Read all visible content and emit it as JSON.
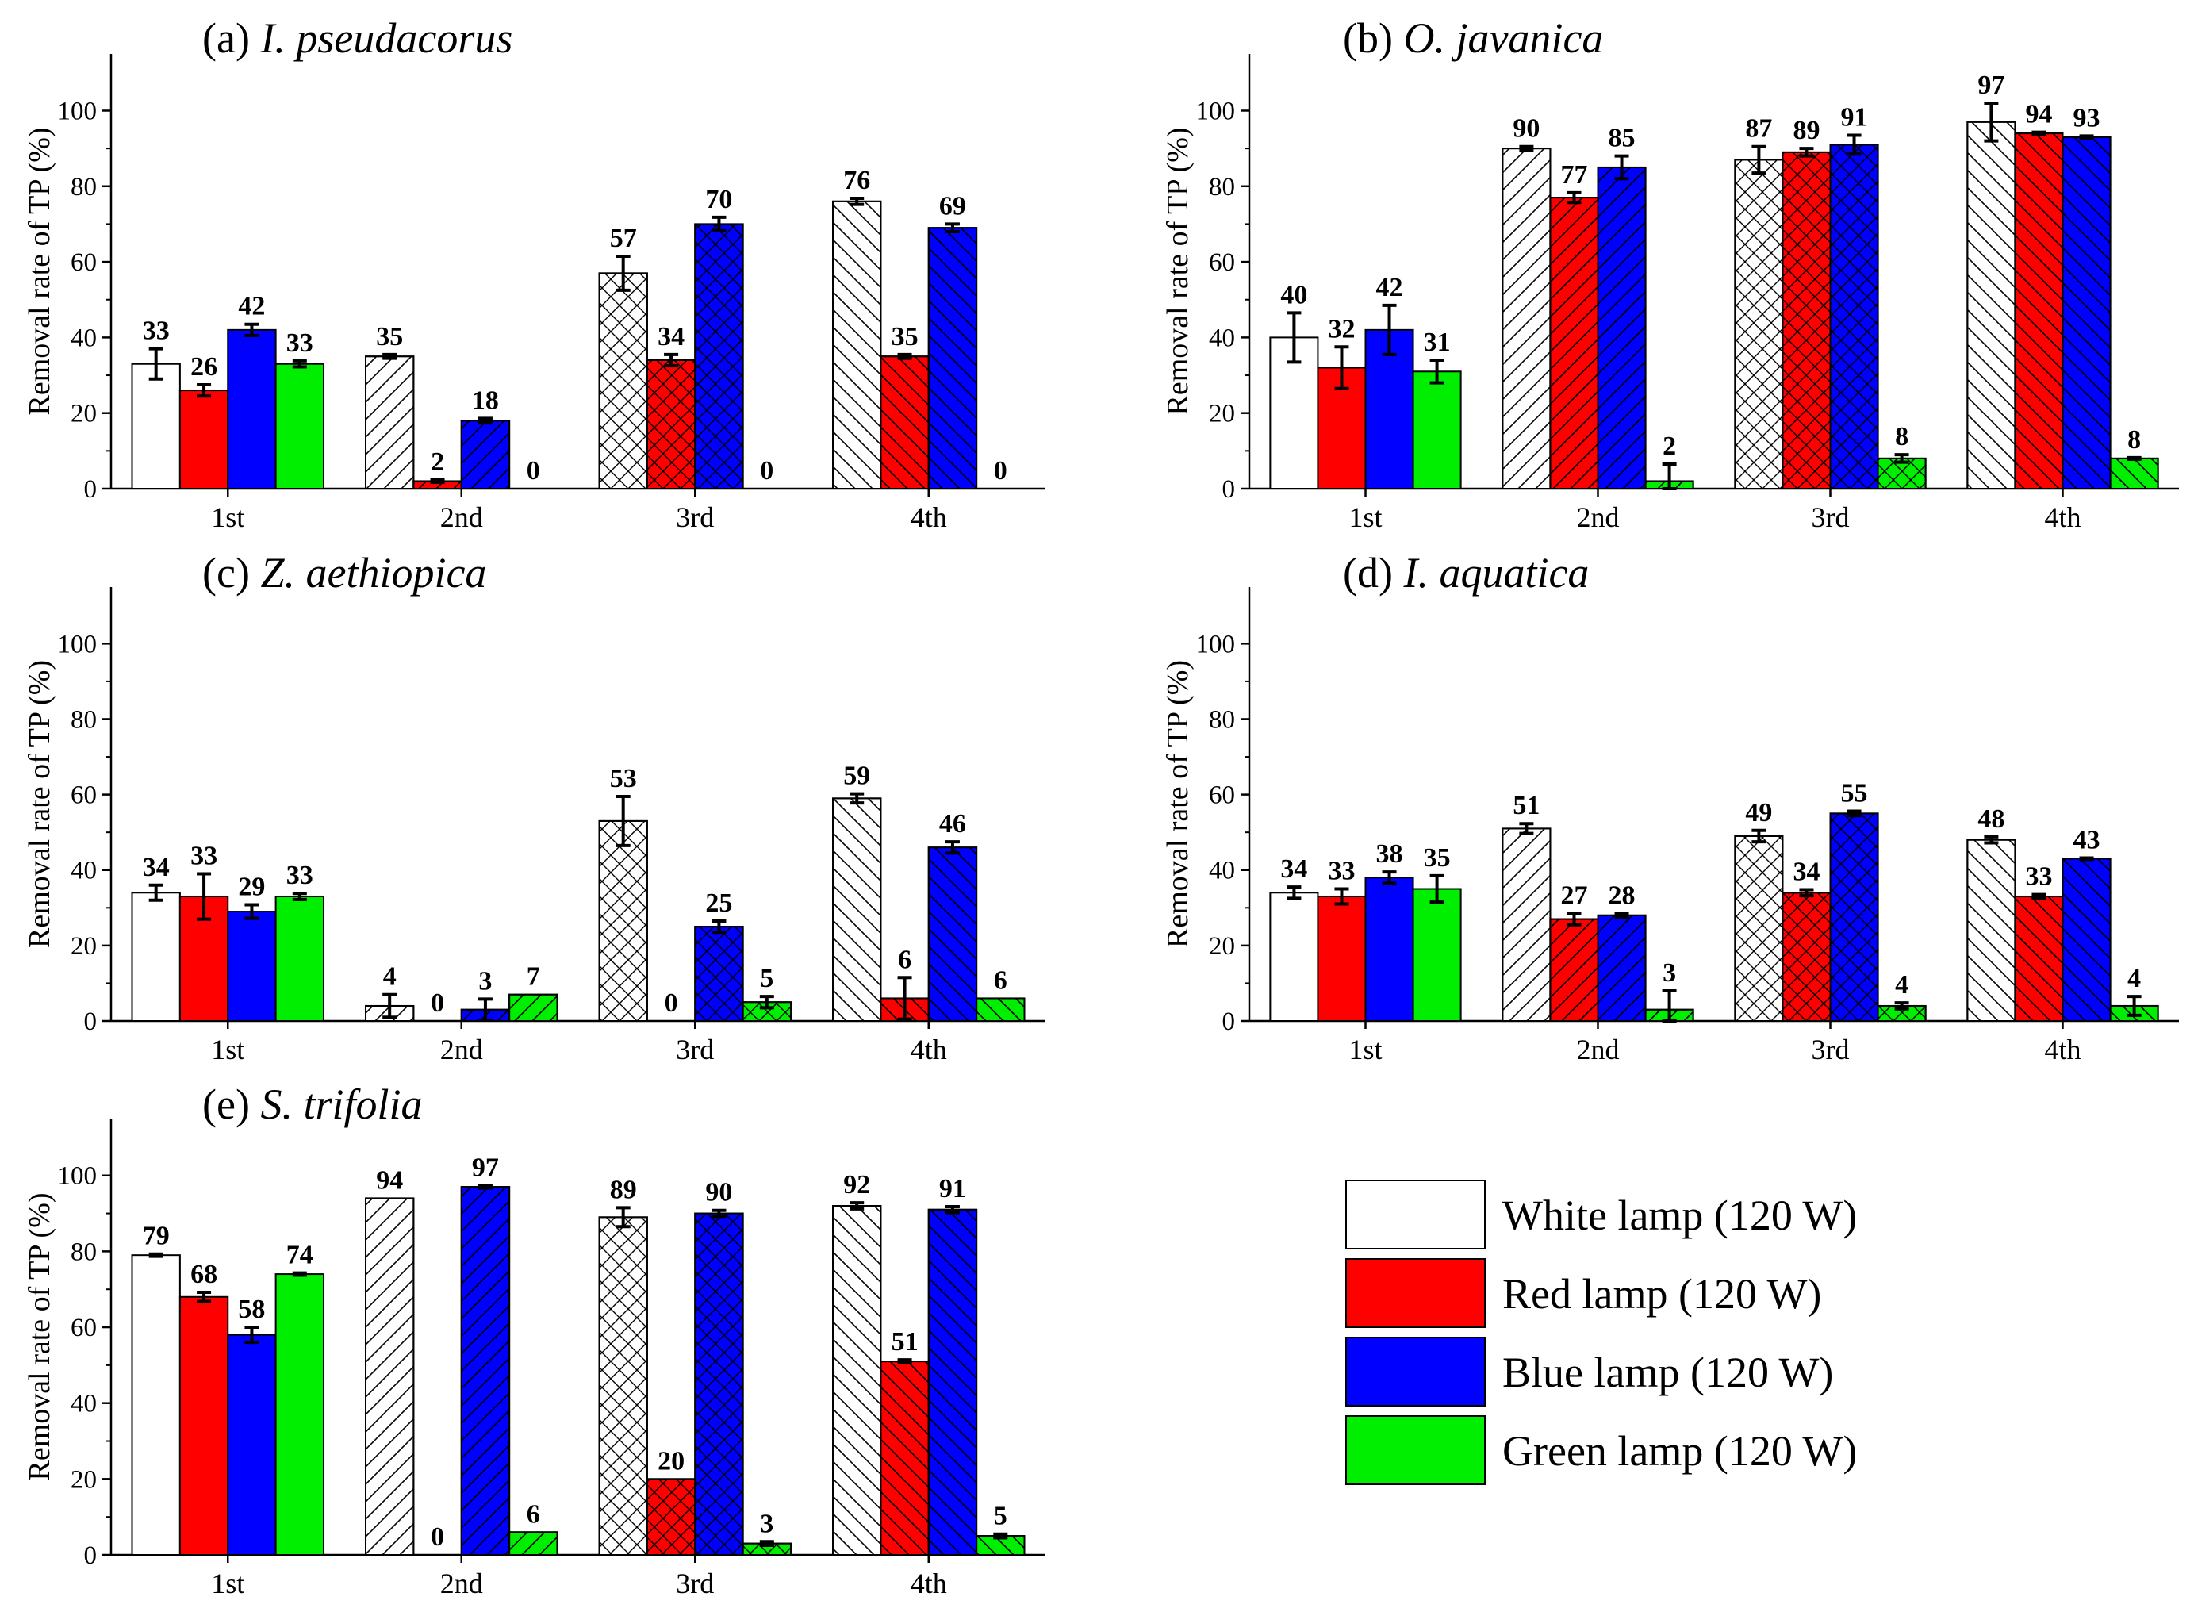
{
  "chart_data": [
    {
      "type": "bar",
      "panel": "(a)",
      "species": "I. pseudacorus",
      "categories": [
        "1st",
        "2nd",
        "3rd",
        "4th"
      ],
      "ylabel": "Removal rate of TP (%)",
      "ylim": [
        0,
        115
      ],
      "yticks": [
        0,
        20,
        40,
        60,
        80,
        100
      ],
      "series": [
        {
          "name": "White lamp (120 W)",
          "values": [
            33,
            35,
            57,
            76
          ],
          "errors": [
            4,
            0.5,
            4.5,
            0.8
          ]
        },
        {
          "name": "Red lamp (120 W)",
          "values": [
            26,
            2,
            34,
            35
          ],
          "errors": [
            1.5,
            0.3,
            1.5,
            0.5
          ]
        },
        {
          "name": "Blue lamp (120 W)",
          "values": [
            42,
            18,
            70,
            69
          ],
          "errors": [
            1.5,
            0.6,
            1.8,
            1
          ]
        },
        {
          "name": "Green lamp (120 W)",
          "values": [
            33,
            0,
            0,
            0
          ],
          "errors": [
            0.8,
            0,
            0,
            0
          ]
        }
      ]
    },
    {
      "type": "bar",
      "panel": "(b)",
      "species": "O. javanica",
      "categories": [
        "1st",
        "2nd",
        "3rd",
        "4th"
      ],
      "ylabel": "Removal rate of TP (%)",
      "ylim": [
        0,
        115
      ],
      "yticks": [
        0,
        20,
        40,
        60,
        80,
        100
      ],
      "series": [
        {
          "name": "White lamp (120 W)",
          "values": [
            40,
            90,
            87,
            97
          ],
          "errors": [
            6.5,
            0.5,
            3.5,
            5
          ]
        },
        {
          "name": "Red lamp (120 W)",
          "values": [
            32,
            77,
            89,
            94
          ],
          "errors": [
            5.5,
            1.3,
            1,
            0.3
          ]
        },
        {
          "name": "Blue lamp (120 W)",
          "values": [
            42,
            85,
            91,
            93
          ],
          "errors": [
            6.5,
            3,
            2.5,
            0.3
          ]
        },
        {
          "name": "Green lamp (120 W)",
          "values": [
            31,
            2,
            8,
            8
          ],
          "errors": [
            3,
            4.5,
            1,
            0.2
          ]
        }
      ]
    },
    {
      "type": "bar",
      "panel": "(c)",
      "species": "Z. aethiopica",
      "categories": [
        "1st",
        "2nd",
        "3rd",
        "4th"
      ],
      "ylabel": "Removal rate of TP (%)",
      "ylim": [
        0,
        115
      ],
      "yticks": [
        0,
        20,
        40,
        60,
        80,
        100
      ],
      "series": [
        {
          "name": "White lamp (120 W)",
          "values": [
            34,
            4,
            53,
            59
          ],
          "errors": [
            2,
            3,
            6.5,
            1.2
          ]
        },
        {
          "name": "Red lamp (120 W)",
          "values": [
            33,
            0,
            0,
            6
          ],
          "errors": [
            6,
            0,
            0,
            5.5
          ]
        },
        {
          "name": "Blue lamp (120 W)",
          "values": [
            29,
            3,
            25,
            46
          ],
          "errors": [
            1.8,
            2.8,
            1.5,
            1.5
          ]
        },
        {
          "name": "Green lamp (120 W)",
          "values": [
            33,
            7,
            5,
            6
          ],
          "errors": [
            0.8,
            0,
            1.5,
            0
          ]
        }
      ]
    },
    {
      "type": "bar",
      "panel": "(d)",
      "species": "I. aquatica",
      "categories": [
        "1st",
        "2nd",
        "3rd",
        "4th"
      ],
      "ylabel": "Removal rate of TP (%)",
      "ylim": [
        0,
        115
      ],
      "yticks": [
        0,
        20,
        40,
        60,
        80,
        100
      ],
      "series": [
        {
          "name": "White lamp (120 W)",
          "values": [
            34,
            51,
            49,
            48
          ],
          "errors": [
            1.5,
            1.3,
            1.5,
            0.8
          ]
        },
        {
          "name": "Red lamp (120 W)",
          "values": [
            33,
            27,
            34,
            33
          ],
          "errors": [
            2,
            1.5,
            0.8,
            0.5
          ]
        },
        {
          "name": "Blue lamp (120 W)",
          "values": [
            38,
            28,
            55,
            43
          ],
          "errors": [
            1.5,
            0.5,
            0.6,
            0.2
          ]
        },
        {
          "name": "Green lamp (120 W)",
          "values": [
            35,
            3,
            4,
            4
          ],
          "errors": [
            3.5,
            5,
            0.8,
            2.5
          ]
        }
      ]
    },
    {
      "type": "bar",
      "panel": "(e)",
      "species": "S. trifolia",
      "categories": [
        "1st",
        "2nd",
        "3rd",
        "4th"
      ],
      "ylabel": "Removal rate of TP (%)",
      "ylim": [
        0,
        115
      ],
      "yticks": [
        0,
        20,
        40,
        60,
        80,
        100
      ],
      "series": [
        {
          "name": "White lamp (120 W)",
          "values": [
            79,
            94,
            89,
            92
          ],
          "errors": [
            0.3,
            0,
            2.5,
            0.8
          ]
        },
        {
          "name": "Red lamp (120 W)",
          "values": [
            68,
            0,
            20,
            51
          ],
          "errors": [
            1.2,
            0,
            0,
            0.4
          ]
        },
        {
          "name": "Blue lamp (120 W)",
          "values": [
            58,
            97,
            90,
            91
          ],
          "errors": [
            2,
            0.3,
            0.8,
            0.8
          ]
        },
        {
          "name": "Green lamp (120 W)",
          "values": [
            74,
            6,
            3,
            5
          ],
          "errors": [
            0.3,
            0,
            0.5,
            0.5
          ]
        }
      ]
    }
  ],
  "legend": {
    "items": [
      {
        "label": "White lamp (120 W)",
        "color": "#ffffff"
      },
      {
        "label": "Red lamp (120 W)",
        "color": "#ff0000"
      },
      {
        "label": "Blue lamp (120 W)",
        "color": "#0000ff"
      },
      {
        "label": "Green lamp (120 W)",
        "color": "#00ee00"
      }
    ]
  },
  "colors": {
    "white": "#ffffff",
    "red": "#ff0000",
    "blue": "#0000ff",
    "green": "#00ee00",
    "axis": "#000000"
  }
}
